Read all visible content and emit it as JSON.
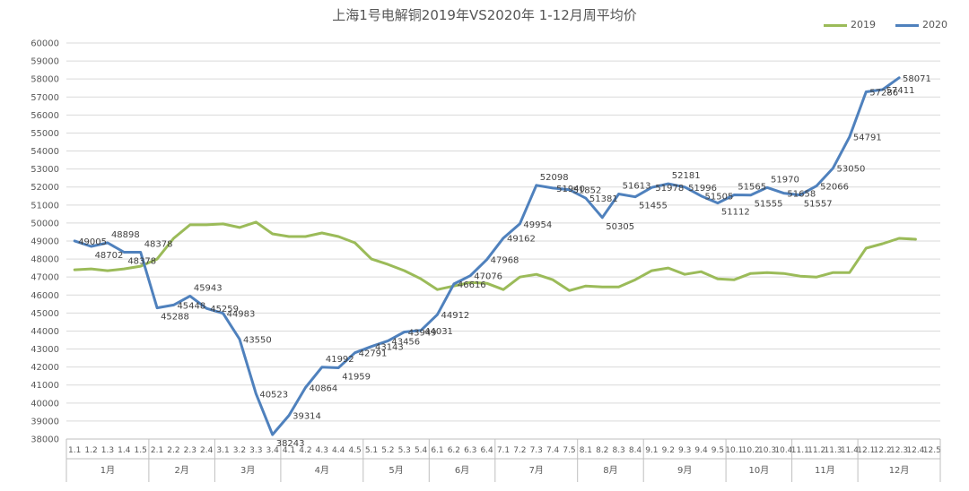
{
  "chart_data": {
    "type": "line",
    "title": "上海1号电解铜2019年VS2020年  1-12月周平均价",
    "categories": [
      "1.1",
      "1.2",
      "1.3",
      "1.4",
      "1.5",
      "2.1",
      "2.2",
      "2.3",
      "2.4",
      "3.1",
      "3.2",
      "3.3",
      "3.4",
      "4.1",
      "4.2",
      "4.3",
      "4.4",
      "4.5",
      "5.1",
      "5.2",
      "5.3",
      "5.4",
      "6.1",
      "6.2",
      "6.3",
      "6.4",
      "7.1",
      "7.2",
      "7.3",
      "7.4",
      "7.5",
      "8.1",
      "8.2",
      "8.3",
      "8.4",
      "9.1",
      "9.2",
      "9.3",
      "9.4",
      "9.5",
      "10.1",
      "10.2",
      "10.3",
      "10.4",
      "11.1",
      "11.2",
      "11.3",
      "11.4",
      "12.1",
      "12.2",
      "12.3",
      "12.4",
      "12.5"
    ],
    "months": [
      {
        "label": "1月",
        "count": 5
      },
      {
        "label": "2月",
        "count": 4
      },
      {
        "label": "3月",
        "count": 4
      },
      {
        "label": "4月",
        "count": 5
      },
      {
        "label": "5月",
        "count": 4
      },
      {
        "label": "6月",
        "count": 4
      },
      {
        "label": "7月",
        "count": 5
      },
      {
        "label": "8月",
        "count": 4
      },
      {
        "label": "9月",
        "count": 5
      },
      {
        "label": "10月",
        "count": 4
      },
      {
        "label": "11月",
        "count": 4
      },
      {
        "label": "12月",
        "count": 5
      }
    ],
    "ylim": [
      38000,
      60000
    ],
    "ytick_step": 1000,
    "grid": true,
    "legend_position": "top-right",
    "series": [
      {
        "name": "2019",
        "color": "#9BBB59",
        "show_labels": false,
        "values": [
          47400,
          47450,
          47350,
          47450,
          47600,
          48000,
          49150,
          49900,
          49900,
          49950,
          49750,
          50050,
          49400,
          49250,
          49250,
          49450,
          49250,
          48900,
          48000,
          47700,
          47350,
          46900,
          46300,
          46500,
          46700,
          46650,
          46300,
          47000,
          47150,
          46850,
          46250,
          46500,
          46450,
          46450,
          46850,
          47350,
          47500,
          47150,
          47300,
          46900,
          46850,
          47200,
          47250,
          47200,
          47050,
          47000,
          47250,
          47250,
          48600,
          48850,
          49150,
          49100,
          null
        ]
      },
      {
        "name": "2020",
        "color": "#4F81BD",
        "show_labels": true,
        "values": [
          49005,
          48702,
          48898,
          48378,
          48378,
          45288,
          45448,
          45943,
          45259,
          44983,
          43550,
          40523,
          38243,
          39314,
          40864,
          41992,
          41959,
          42791,
          43143,
          43456,
          43949,
          44031,
          44912,
          46616,
          47076,
          47968,
          49162,
          49954,
          52098,
          51940,
          51852,
          51381,
          50305,
          51613,
          51455,
          51978,
          52181,
          51996,
          51505,
          51112,
          51565,
          51555,
          51970,
          51658,
          51557,
          52066,
          53050,
          54791,
          57286,
          57411,
          58071,
          null,
          null
        ]
      }
    ]
  }
}
